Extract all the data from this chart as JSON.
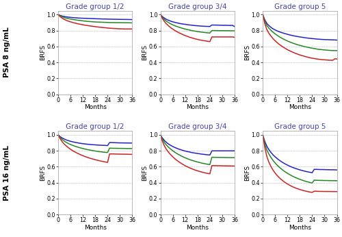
{
  "col_titles": [
    "Grade group 1/2",
    "Grade group 3/4",
    "Grade group 5"
  ],
  "row_labels": [
    "PSA 8 ng/mL",
    "PSA 16 ng/mL"
  ],
  "ylabel_inner": "BRFS",
  "xlabel": "Months",
  "xticks": [
    0,
    6,
    12,
    18,
    24,
    30,
    36
  ],
  "yticks": [
    0.0,
    0.2,
    0.4,
    0.6,
    0.8,
    1.0
  ],
  "colors": [
    "#2222cc",
    "#228822",
    "#cc2222"
  ],
  "line_width": 1.1,
  "title_color": "#4444aa",
  "panels": {
    "r0c0": {
      "blue": [
        1.0,
        0.99,
        0.982,
        0.976,
        0.972,
        0.969,
        0.966,
        0.963,
        0.961,
        0.959,
        0.957,
        0.956,
        0.955,
        0.954,
        0.953,
        0.952,
        0.951,
        0.95,
        0.949,
        0.948,
        0.947,
        0.946,
        0.945,
        0.945,
        0.944,
        0.943,
        0.943,
        0.942,
        0.942,
        0.941,
        0.941,
        0.94,
        0.94,
        0.94,
        0.939,
        0.939,
        0.938
      ],
      "green": [
        1.0,
        0.985,
        0.972,
        0.963,
        0.956,
        0.95,
        0.945,
        0.94,
        0.936,
        0.932,
        0.928,
        0.925,
        0.922,
        0.919,
        0.916,
        0.914,
        0.912,
        0.91,
        0.908,
        0.907,
        0.906,
        0.905,
        0.904,
        0.903,
        0.902,
        0.901,
        0.9,
        0.9,
        0.899,
        0.899,
        0.899,
        0.899,
        0.898,
        0.898,
        0.898,
        0.897,
        0.897
      ],
      "red": [
        1.0,
        0.975,
        0.955,
        0.94,
        0.928,
        0.918,
        0.91,
        0.902,
        0.895,
        0.889,
        0.883,
        0.878,
        0.873,
        0.868,
        0.864,
        0.86,
        0.856,
        0.853,
        0.849,
        0.846,
        0.843,
        0.84,
        0.837,
        0.835,
        0.832,
        0.83,
        0.828,
        0.826,
        0.825,
        0.823,
        0.822,
        0.821,
        0.82,
        0.82,
        0.82,
        0.82,
        0.82
      ]
    },
    "r0c1": {
      "blue": [
        1.0,
        0.975,
        0.955,
        0.94,
        0.928,
        0.918,
        0.91,
        0.903,
        0.897,
        0.891,
        0.886,
        0.882,
        0.878,
        0.874,
        0.871,
        0.868,
        0.865,
        0.862,
        0.86,
        0.858,
        0.856,
        0.854,
        0.853,
        0.852,
        0.851,
        0.87,
        0.869,
        0.869,
        0.868,
        0.867,
        0.867,
        0.866,
        0.866,
        0.865,
        0.865,
        0.865,
        0.85
      ],
      "green": [
        1.0,
        0.965,
        0.937,
        0.916,
        0.899,
        0.884,
        0.872,
        0.861,
        0.851,
        0.842,
        0.834,
        0.826,
        0.819,
        0.813,
        0.807,
        0.801,
        0.796,
        0.792,
        0.788,
        0.784,
        0.78,
        0.777,
        0.774,
        0.771,
        0.769,
        0.8,
        0.8,
        0.8,
        0.799,
        0.799,
        0.799,
        0.798,
        0.798,
        0.798,
        0.797,
        0.797,
        0.796
      ],
      "red": [
        1.0,
        0.95,
        0.912,
        0.882,
        0.858,
        0.836,
        0.818,
        0.801,
        0.786,
        0.772,
        0.76,
        0.748,
        0.737,
        0.728,
        0.718,
        0.71,
        0.702,
        0.695,
        0.689,
        0.683,
        0.678,
        0.673,
        0.669,
        0.665,
        0.661,
        0.72,
        0.72,
        0.72,
        0.72,
        0.72,
        0.72,
        0.72,
        0.72,
        0.72,
        0.72,
        0.72,
        0.715
      ]
    },
    "r0c2": {
      "blue": [
        1.0,
        0.935,
        0.89,
        0.862,
        0.84,
        0.822,
        0.808,
        0.796,
        0.785,
        0.776,
        0.768,
        0.76,
        0.753,
        0.746,
        0.74,
        0.734,
        0.729,
        0.724,
        0.72,
        0.716,
        0.712,
        0.708,
        0.705,
        0.702,
        0.699,
        0.697,
        0.694,
        0.692,
        0.69,
        0.688,
        0.687,
        0.686,
        0.685,
        0.684,
        0.683,
        0.682,
        0.68
      ],
      "green": [
        1.0,
        0.92,
        0.865,
        0.83,
        0.803,
        0.779,
        0.758,
        0.74,
        0.723,
        0.708,
        0.694,
        0.681,
        0.669,
        0.658,
        0.648,
        0.638,
        0.63,
        0.621,
        0.614,
        0.607,
        0.6,
        0.594,
        0.589,
        0.583,
        0.578,
        0.574,
        0.569,
        0.565,
        0.562,
        0.559,
        0.556,
        0.554,
        0.552,
        0.55,
        0.549,
        0.548,
        0.547
      ],
      "red": [
        1.0,
        0.89,
        0.812,
        0.766,
        0.73,
        0.699,
        0.672,
        0.648,
        0.627,
        0.608,
        0.591,
        0.575,
        0.56,
        0.547,
        0.535,
        0.523,
        0.513,
        0.503,
        0.494,
        0.486,
        0.478,
        0.471,
        0.464,
        0.458,
        0.453,
        0.448,
        0.444,
        0.44,
        0.437,
        0.434,
        0.432,
        0.43,
        0.428,
        0.427,
        0.426,
        0.445,
        0.443
      ]
    },
    "r1c0": {
      "blue": [
        1.0,
        0.978,
        0.961,
        0.948,
        0.937,
        0.928,
        0.92,
        0.914,
        0.908,
        0.903,
        0.898,
        0.894,
        0.89,
        0.887,
        0.884,
        0.881,
        0.879,
        0.877,
        0.875,
        0.873,
        0.872,
        0.87,
        0.869,
        0.868,
        0.866,
        0.905,
        0.904,
        0.903,
        0.902,
        0.901,
        0.9,
        0.9,
        0.899,
        0.899,
        0.899,
        0.898,
        0.898
      ],
      "green": [
        1.0,
        0.968,
        0.942,
        0.922,
        0.906,
        0.892,
        0.88,
        0.869,
        0.86,
        0.851,
        0.843,
        0.836,
        0.829,
        0.823,
        0.817,
        0.812,
        0.807,
        0.802,
        0.798,
        0.794,
        0.79,
        0.787,
        0.784,
        0.781,
        0.779,
        0.834,
        0.833,
        0.832,
        0.832,
        0.831,
        0.831,
        0.831,
        0.83,
        0.83,
        0.829,
        0.829,
        0.828
      ],
      "red": [
        1.0,
        0.952,
        0.913,
        0.884,
        0.86,
        0.839,
        0.82,
        0.803,
        0.788,
        0.774,
        0.762,
        0.75,
        0.739,
        0.729,
        0.72,
        0.711,
        0.703,
        0.696,
        0.689,
        0.682,
        0.676,
        0.67,
        0.665,
        0.66,
        0.655,
        0.762,
        0.761,
        0.761,
        0.76,
        0.759,
        0.759,
        0.758,
        0.758,
        0.757,
        0.757,
        0.756,
        0.756
      ]
    },
    "r1c1": {
      "blue": [
        1.0,
        0.96,
        0.928,
        0.904,
        0.884,
        0.868,
        0.854,
        0.842,
        0.831,
        0.821,
        0.813,
        0.805,
        0.798,
        0.791,
        0.786,
        0.78,
        0.775,
        0.771,
        0.767,
        0.763,
        0.759,
        0.756,
        0.753,
        0.75,
        0.748,
        0.8,
        0.8,
        0.8,
        0.8,
        0.8,
        0.8,
        0.8,
        0.8,
        0.8,
        0.8,
        0.8,
        0.8
      ],
      "green": [
        1.0,
        0.945,
        0.902,
        0.87,
        0.844,
        0.821,
        0.801,
        0.782,
        0.766,
        0.751,
        0.737,
        0.724,
        0.713,
        0.702,
        0.692,
        0.683,
        0.675,
        0.667,
        0.66,
        0.653,
        0.647,
        0.641,
        0.636,
        0.631,
        0.627,
        0.72,
        0.719,
        0.718,
        0.718,
        0.717,
        0.717,
        0.716,
        0.716,
        0.715,
        0.715,
        0.715,
        0.714
      ],
      "red": [
        1.0,
        0.918,
        0.858,
        0.815,
        0.781,
        0.751,
        0.725,
        0.701,
        0.68,
        0.661,
        0.644,
        0.628,
        0.613,
        0.6,
        0.588,
        0.577,
        0.567,
        0.557,
        0.549,
        0.541,
        0.534,
        0.527,
        0.521,
        0.516,
        0.511,
        0.615,
        0.614,
        0.614,
        0.613,
        0.613,
        0.612,
        0.612,
        0.611,
        0.611,
        0.61,
        0.61,
        0.609
      ]
    },
    "r1c2": {
      "blue": [
        1.0,
        0.918,
        0.858,
        0.815,
        0.78,
        0.75,
        0.725,
        0.703,
        0.683,
        0.665,
        0.649,
        0.634,
        0.621,
        0.608,
        0.597,
        0.587,
        0.578,
        0.569,
        0.561,
        0.554,
        0.547,
        0.541,
        0.535,
        0.53,
        0.525,
        0.568,
        0.567,
        0.566,
        0.565,
        0.565,
        0.564,
        0.563,
        0.563,
        0.562,
        0.562,
        0.561,
        0.56
      ],
      "green": [
        1.0,
        0.89,
        0.812,
        0.758,
        0.716,
        0.68,
        0.648,
        0.62,
        0.595,
        0.573,
        0.553,
        0.534,
        0.518,
        0.502,
        0.488,
        0.475,
        0.463,
        0.452,
        0.442,
        0.433,
        0.424,
        0.416,
        0.409,
        0.402,
        0.396,
        0.432,
        0.43,
        0.429,
        0.428,
        0.428,
        0.427,
        0.427,
        0.426,
        0.426,
        0.425,
        0.425,
        0.424
      ],
      "red": [
        1.0,
        0.845,
        0.728,
        0.656,
        0.602,
        0.558,
        0.521,
        0.49,
        0.463,
        0.44,
        0.419,
        0.4,
        0.384,
        0.369,
        0.355,
        0.343,
        0.332,
        0.323,
        0.314,
        0.306,
        0.299,
        0.293,
        0.287,
        0.282,
        0.278,
        0.293,
        0.292,
        0.291,
        0.29,
        0.29,
        0.289,
        0.289,
        0.289,
        0.289,
        0.288,
        0.288,
        0.288
      ]
    }
  },
  "background_color": "#ffffff",
  "grid_color": "#bbbbbb",
  "axis_label_fontsize": 6.5,
  "title_fontsize": 7.5,
  "tick_fontsize": 5.8,
  "row_label_fontsize": 7.5
}
